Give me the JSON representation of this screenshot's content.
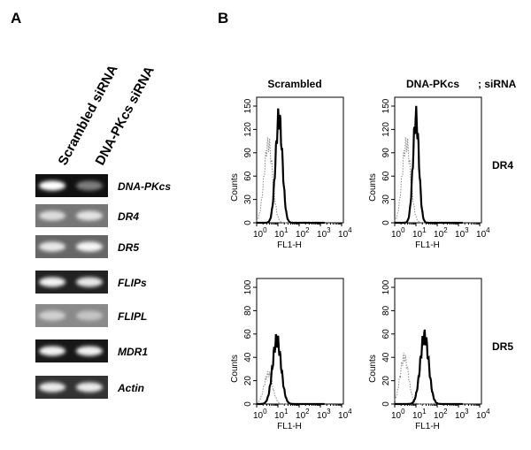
{
  "panel_a": {
    "label": "A",
    "lanes": [
      "Scrambled siRNA",
      "DNA-PKcs siRNA"
    ],
    "genes": [
      "DNA-PKcs",
      "DR4",
      "DR5",
      "FLIPs",
      "FLIPL",
      "MDR1",
      "Actin"
    ]
  },
  "panel_b": {
    "label": "B",
    "columns": [
      "Scrambled",
      "DNA-PKcs"
    ],
    "sirna": "; siRNA",
    "rows": [
      {
        "name": "DR4",
        "yticks": [
          0,
          30,
          60,
          90,
          120,
          150
        ]
      },
      {
        "name": "DR5",
        "yticks": [
          0,
          20,
          40,
          60,
          80,
          100
        ]
      }
    ],
    "y_label": "Counts",
    "x_label": "FL1-H",
    "xticks": [
      {
        "base": "10",
        "exp": "0"
      },
      {
        "base": "10",
        "exp": "1"
      },
      {
        "base": "10",
        "exp": "2"
      },
      {
        "base": "10",
        "exp": "3"
      },
      {
        "base": "10",
        "exp": "4"
      }
    ]
  }
}
